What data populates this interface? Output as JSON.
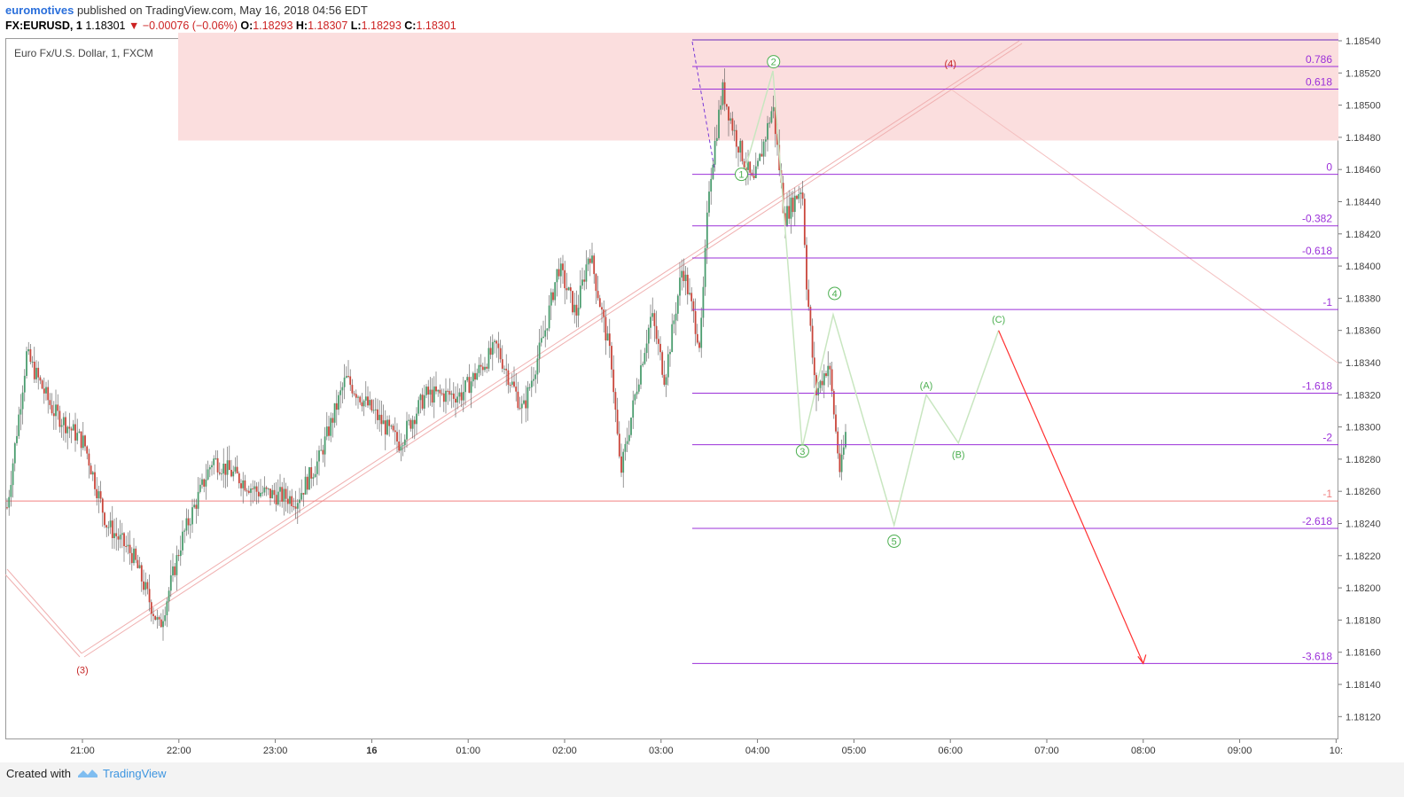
{
  "header": {
    "author": "euromotives",
    "published_text": "published on TradingView.com, May 16, 2018 04:56 EDT",
    "symbol": "FX:EURUSD, 1",
    "last": "1.18301",
    "change": "▼ −0.00076 (−0.06%)",
    "o_label": "O:",
    "o": "1.18293",
    "h_label": "H:",
    "h": "1.18307",
    "l_label": "L:",
    "l": "1.18293",
    "c_label": "C:",
    "c": "1.18301"
  },
  "chart_title": "Euro Fx/U.S. Dollar, 1, FXCM",
  "footer": {
    "created": "Created with",
    "brand": "TradingView"
  },
  "colors": {
    "up": "#4a9c6e",
    "down": "#c9453a",
    "fib": "#9b30d9",
    "zone": "#fbdede",
    "wave_green": "#4caf50",
    "wave_red": "#c62828",
    "target_arrow": "#ff3030"
  },
  "chart_data": {
    "type": "candlestick",
    "y_ticks": [
      "1.18540",
      "1.18520",
      "1.18500",
      "1.18480",
      "1.18460",
      "1.18440",
      "1.18420",
      "1.18400",
      "1.18380",
      "1.18360",
      "1.18340",
      "1.18320",
      "1.18300",
      "1.18280",
      "1.18260",
      "1.18240",
      "1.18220",
      "1.18200",
      "1.18180",
      "1.18160",
      "1.18140",
      "1.18120"
    ],
    "x_ticks": [
      "21:00",
      "22:00",
      "23:00",
      "16",
      "01:00",
      "02:00",
      "03:00",
      "04:00",
      "05:00",
      "06:00",
      "07:00",
      "08:00",
      "09:00",
      "10:"
    ],
    "ylim": [
      1.18109,
      1.18545
    ],
    "fib_levels": [
      {
        "label": "0.786",
        "price": 1.18524
      },
      {
        "label": "0.618",
        "price": 1.1851
      },
      {
        "label": "0",
        "price": 1.18457
      },
      {
        "label": "-0.382",
        "price": 1.18425
      },
      {
        "label": "-0.618",
        "price": 1.18405
      },
      {
        "label": "-1",
        "price": 1.18373
      },
      {
        "label": "-1.618",
        "price": 1.18321
      },
      {
        "label": "-2",
        "price": 1.18289
      },
      {
        "label": "-2.618",
        "price": 1.18237
      },
      {
        "label": "-3.618",
        "price": 1.18153
      }
    ],
    "horizontal_line": {
      "label": "-1",
      "price": 1.18254
    },
    "resistance_zone": {
      "from": 1.18478,
      "to": 1.18545
    },
    "wave_labels": [
      {
        "label": "1",
        "time": "03:50",
        "price": 1.18457,
        "color": "green"
      },
      {
        "label": "2",
        "time": "04:10",
        "price": 1.18527,
        "color": "green"
      },
      {
        "label": "3",
        "time": "04:28",
        "price": 1.18285,
        "color": "green"
      },
      {
        "label": "4",
        "time": "04:48",
        "price": 1.18383,
        "color": "green"
      },
      {
        "label": "5",
        "time": "05:25",
        "price": 1.18229,
        "color": "green"
      },
      {
        "label": "(A)",
        "time": "05:45",
        "price": 1.18326,
        "color": "green"
      },
      {
        "label": "(B)",
        "time": "06:05",
        "price": 1.18283,
        "color": "green"
      },
      {
        "label": "(C)",
        "time": "06:30",
        "price": 1.18367,
        "color": "green"
      },
      {
        "label": "(4)",
        "time": "06:00",
        "price": 1.18526,
        "color": "red"
      },
      {
        "label": "(3)",
        "time": "21:00",
        "price": 1.18149,
        "color": "red"
      }
    ],
    "projection_path": [
      [
        "04:48",
        1.18372
      ],
      [
        "05:25",
        1.18239
      ],
      [
        "05:45",
        1.1832
      ],
      [
        "06:05",
        1.1829
      ],
      [
        "06:30",
        1.1836
      ]
    ],
    "target_arrow": [
      [
        "06:30",
        1.1836
      ],
      [
        "08:00",
        1.18153
      ]
    ]
  }
}
